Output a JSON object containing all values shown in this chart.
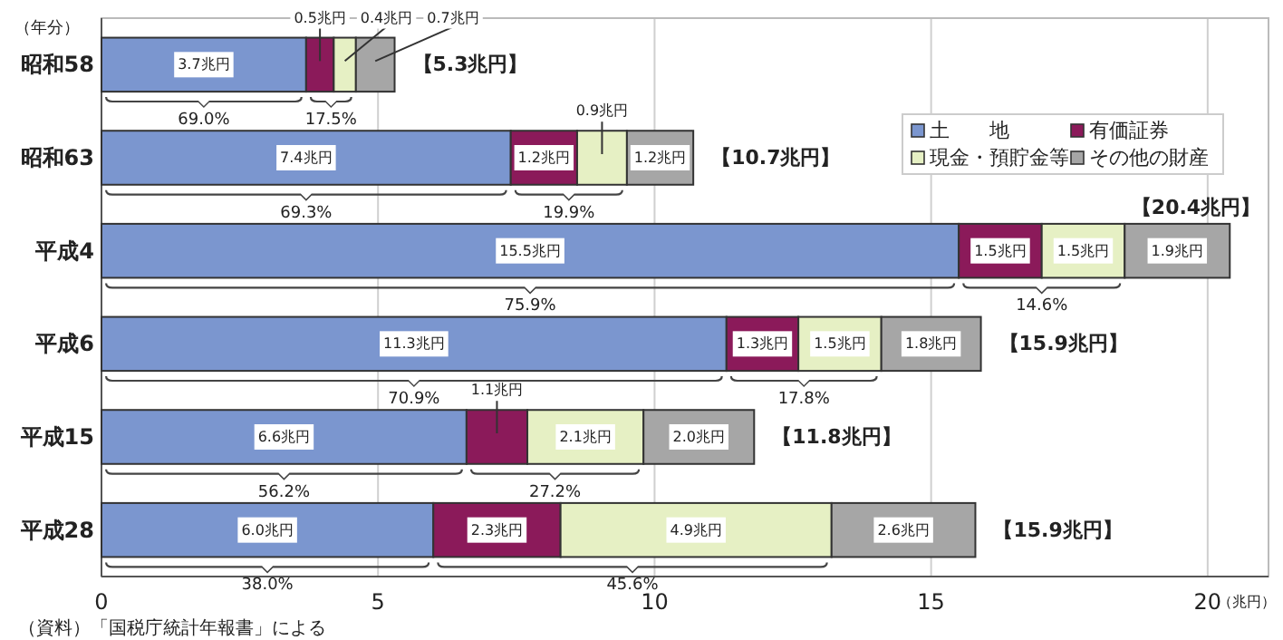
{
  "chart_data": {
    "type": "bar",
    "orientation": "horizontal",
    "stacked": true,
    "ylabel": "（年分）",
    "xlabel": "（兆円）",
    "categories": [
      "昭和58",
      "昭和63",
      "平成4",
      "平成6",
      "平成15",
      "平成28"
    ],
    "series": [
      {
        "name": "土　　地",
        "color": "#7b96cf",
        "values": [
          3.7,
          7.4,
          15.5,
          11.3,
          6.6,
          6.0
        ],
        "value_labels": [
          "3.7兆円",
          "7.4兆円",
          "15.5兆円",
          "11.3兆円",
          "6.6兆円",
          "6.0兆円"
        ]
      },
      {
        "name": "有価証券",
        "color": "#8b1a5a",
        "values": [
          0.5,
          1.2,
          1.5,
          1.3,
          1.1,
          2.3
        ],
        "value_labels": [
          "0.5兆円",
          "1.2兆円",
          "1.5兆円",
          "1.3兆円",
          "1.1兆円",
          "2.3兆円"
        ]
      },
      {
        "name": "現金・預貯金等",
        "color": "#e6f0c4",
        "values": [
          0.4,
          0.9,
          1.5,
          1.5,
          2.1,
          4.9
        ],
        "value_labels": [
          "0.4兆円",
          "0.9兆円",
          "1.5兆円",
          "1.5兆円",
          "2.1兆円",
          "4.9兆円"
        ]
      },
      {
        "name": "その他の財産",
        "color": "#a6a6a6",
        "values": [
          0.7,
          1.2,
          1.9,
          1.8,
          2.0,
          2.6
        ],
        "value_labels": [
          "0.7兆円",
          "1.2兆円",
          "1.9兆円",
          "1.8兆円",
          "2.0兆円",
          "2.6兆円"
        ]
      }
    ],
    "totals": [
      "【5.3兆円】",
      "【10.7兆円】",
      "【20.4兆円】",
      "【15.9兆円】",
      "【11.8兆円】",
      "【15.9兆円】"
    ],
    "xlim": [
      0,
      21.1
    ],
    "xticks": [
      0,
      5,
      10,
      15,
      20
    ],
    "grid": "x",
    "legend": "top right",
    "annotations": [
      {
        "text": "69.0%",
        "x": 1.85,
        "y": "昭和58"
      },
      {
        "text": "17.5%",
        "x": 4.15,
        "y": "昭和58"
      },
      {
        "text": "69.3%",
        "x": 3.7,
        "y": "昭和63"
      },
      {
        "text": "19.9%",
        "x": 8.45,
        "y": "昭和63"
      },
      {
        "text": "75.9%",
        "x": 7.75,
        "y": "平成4"
      },
      {
        "text": "14.6%",
        "x": 17.0,
        "y": "平成4"
      },
      {
        "text": "70.9%",
        "x": 5.65,
        "y": "平成6"
      },
      {
        "text": "17.8%",
        "x": 12.7,
        "y": "平成6"
      },
      {
        "text": "56.2%",
        "x": 3.3,
        "y": "平成15"
      },
      "27.2%",
      {
        "text": "38.0%",
        "x": 3.0,
        "y": "平成28"
      },
      "45.6%",
      "（資料）「国税庁統計年報書」による"
    ]
  }
}
